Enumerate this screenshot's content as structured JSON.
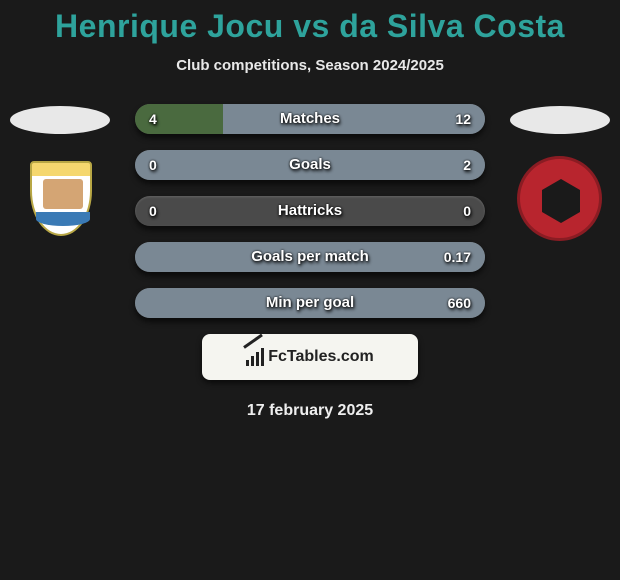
{
  "title_text": "Henrique Jocu vs da Silva Costa",
  "title_color": "#2ea39c",
  "subtitle": "Club competitions, Season 2024/2025",
  "footer_brand": "FcTables.com",
  "date": "17 february 2025",
  "colors": {
    "left_bar": "#4a6a3f",
    "right_bar": "#7a8894",
    "empty_bar": "#4a4a4a"
  },
  "stats": [
    {
      "label": "Matches",
      "left_val": "4",
      "right_val": "12",
      "left_pct": 25,
      "right_pct": 75
    },
    {
      "label": "Goals",
      "left_val": "0",
      "right_val": "2",
      "left_pct": 0,
      "right_pct": 100
    },
    {
      "label": "Hattricks",
      "left_val": "0",
      "right_val": "0",
      "left_pct": 0,
      "right_pct": 0
    },
    {
      "label": "Goals per match",
      "left_val": "",
      "right_val": "0.17",
      "left_pct": 0,
      "right_pct": 100
    },
    {
      "label": "Min per goal",
      "left_val": "",
      "right_val": "660",
      "left_pct": 0,
      "right_pct": 100
    }
  ]
}
